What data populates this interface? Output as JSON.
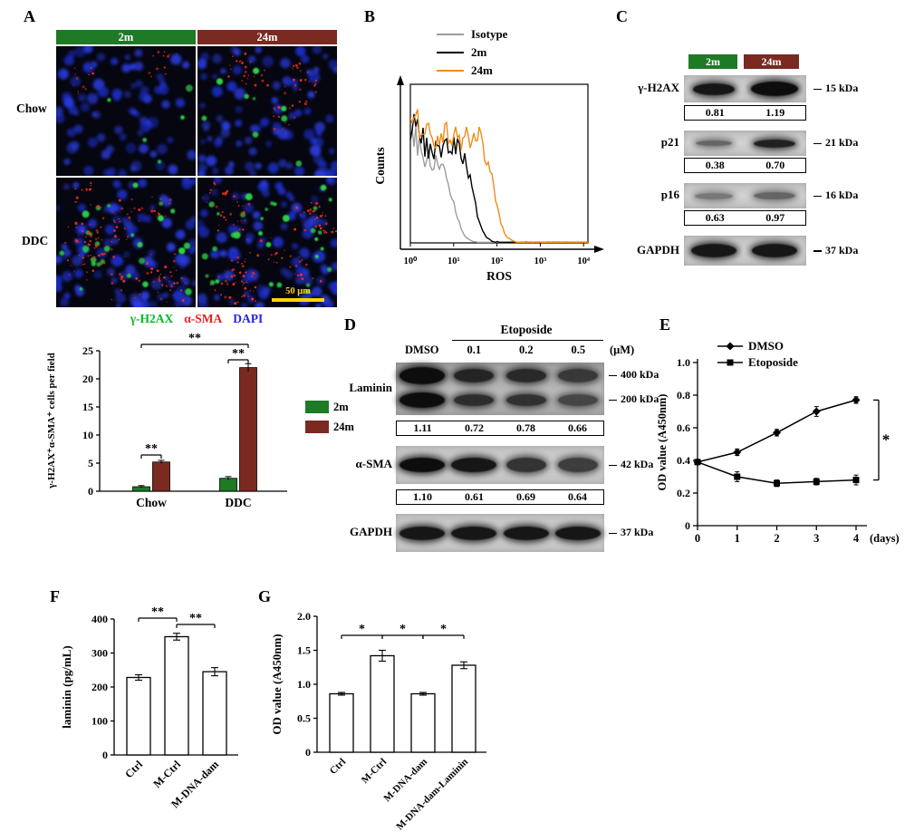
{
  "panels": {
    "A": {
      "label": "A",
      "columns": [
        {
          "label": "2m",
          "color": "#1e7a25"
        },
        {
          "label": "24m",
          "color": "#7a2a21"
        }
      ],
      "rows": [
        "Chow",
        "DDC"
      ],
      "scale_bar_label": "50 μm",
      "fluor_legend": [
        {
          "label": "γ-H2AX",
          "color": "#00bb22"
        },
        {
          "label": "α-SMA",
          "color": "#ee1c1c"
        },
        {
          "label": "DAPI",
          "color": "#2222ee"
        }
      ],
      "micrographs": [
        {
          "name": "Chow-2m",
          "blue": 85,
          "green": 5,
          "red": 24,
          "seed": 101
        },
        {
          "name": "Chow-24m",
          "blue": 90,
          "green": 9,
          "red": 60,
          "seed": 202
        },
        {
          "name": "DDC-2m",
          "blue": 100,
          "green": 26,
          "red": 150,
          "seed": 303
        },
        {
          "name": "DDC-24m",
          "blue": 95,
          "green": 32,
          "red": 140,
          "seed": 404
        }
      ]
    },
    "B": {
      "label": "B"
    },
    "C": {
      "label": "C",
      "lanes": [
        {
          "label": "2m",
          "color": "#1e7a25"
        },
        {
          "label": "24m",
          "color": "#7a2a21"
        }
      ],
      "blots": [
        {
          "protein": "γ-H2AX",
          "kda": "15 kDa",
          "values": [
            "0.81",
            "1.19"
          ],
          "ops": [
            0.95,
            1
          ],
          "hs": [
            13,
            16
          ],
          "ws": [
            46,
            52
          ]
        },
        {
          "protein": "p21",
          "kda": "21 kDa",
          "values": [
            "0.38",
            "0.70"
          ],
          "ops": [
            0.55,
            0.9
          ],
          "hs": [
            6,
            9
          ],
          "ws": [
            40,
            46
          ]
        },
        {
          "protein": "p16",
          "kda": "16 kDa",
          "values": [
            "0.63",
            "0.97"
          ],
          "ops": [
            0.45,
            0.55
          ],
          "hs": [
            7,
            8
          ],
          "ws": [
            42,
            46
          ]
        },
        {
          "protein": "GAPDH",
          "kda": "37 kDa",
          "values": null,
          "ops": [
            0.95,
            0.95
          ],
          "hs": [
            15,
            15
          ],
          "ws": [
            50,
            50
          ]
        }
      ]
    },
    "D": {
      "label": "D",
      "treatment": "Etoposide",
      "lane_labels": [
        "DMSO",
        "0.1",
        "0.2",
        "0.5"
      ],
      "unit_label": "(μM)",
      "blots": [
        {
          "protein": "Laminin",
          "kda": [
            "400 kDa",
            "200 kDa"
          ],
          "values": [
            "1.11",
            "0.72",
            "0.78",
            "0.66"
          ],
          "rows_ops": [
            [
              1,
              0.85,
              0.82,
              0.72
            ],
            [
              1,
              0.8,
              0.78,
              0.65
            ]
          ]
        },
        {
          "protein": "α-SMA",
          "kda": [
            "42 kDa"
          ],
          "values": [
            "1.10",
            "0.61",
            "0.69",
            "0.64"
          ],
          "rows_ops": [
            [
              1,
              0.95,
              0.8,
              0.75
            ]
          ]
        },
        {
          "protein": "GAPDH",
          "kda": [
            "37 kDa"
          ],
          "values": null,
          "rows_ops": [
            [
              0.95,
              0.95,
              0.95,
              0.95
            ]
          ]
        }
      ]
    },
    "E": {
      "label": "E"
    },
    "F": {
      "label": "F"
    },
    "G": {
      "label": "G"
    }
  },
  "chart_data": [
    {
      "id": "A_bar",
      "type": "bar",
      "ylabel": "γ-H2AX⁺α-SMA⁺ cells per field",
      "categories": [
        "Chow",
        "DDC"
      ],
      "series": [
        {
          "name": "2m",
          "color": "#1e7a25",
          "values": [
            0.8,
            2.3
          ],
          "errors": [
            0.2,
            0.3
          ]
        },
        {
          "name": "24m",
          "color": "#7a2a21",
          "values": [
            5.2,
            22
          ],
          "errors": [
            0.3,
            0.7
          ]
        }
      ],
      "ylim": [
        0,
        25
      ],
      "yticks": [
        0,
        5,
        10,
        15,
        20,
        25
      ],
      "legend_position": "right",
      "significance": [
        {
          "type": "pair",
          "cat": 0,
          "label": "**"
        },
        {
          "type": "pair",
          "cat": 1,
          "label": "**"
        },
        {
          "type": "span",
          "label": "**"
        }
      ]
    },
    {
      "id": "B_flow",
      "type": "line",
      "xlabel": "ROS",
      "ylabel": "Counts",
      "xscale": "log",
      "xtick_labels": [
        "10⁰",
        "10¹",
        "10²",
        "10³",
        "10⁴"
      ],
      "legend_position": "top",
      "series": [
        {
          "name": "Isotype",
          "color": "#9c9c9c",
          "plateau": 0.52,
          "fall_log": 1.0
        },
        {
          "name": "2m",
          "color": "#000000",
          "plateau": 0.6,
          "fall_log": 1.45
        },
        {
          "name": "24m",
          "color": "#ee8c1a",
          "plateau": 0.68,
          "fall_log": 1.92
        }
      ]
    },
    {
      "id": "E_line",
      "type": "line",
      "ylabel": "OD value (A450nm)",
      "xlabel": "(days)",
      "x": [
        0,
        1,
        2,
        3,
        4
      ],
      "ylim": [
        0,
        1
      ],
      "yticks": [
        "0",
        "0.2",
        "0.4",
        "0.6",
        "0.8",
        "1.0"
      ],
      "series": [
        {
          "name": "DMSO",
          "marker": "diamond",
          "values": [
            0.39,
            0.45,
            0.57,
            0.7,
            0.77
          ],
          "errors": [
            0.01,
            0.02,
            0.02,
            0.03,
            0.02
          ]
        },
        {
          "name": "Etoposide",
          "marker": "square",
          "values": [
            0.39,
            0.3,
            0.26,
            0.27,
            0.28
          ],
          "errors": [
            0.01,
            0.03,
            0.02,
            0.02,
            0.03
          ]
        }
      ],
      "significance_label": "*"
    },
    {
      "id": "F_bar",
      "type": "bar",
      "ylabel": "laminin (pg/mL)",
      "categories": [
        "Ctrl",
        "M-Ctrl",
        "M-DNA-dam"
      ],
      "values": [
        228,
        348,
        245
      ],
      "errors": [
        8,
        10,
        12
      ],
      "ylim": [
        0,
        400
      ],
      "yticks": [
        0,
        100,
        200,
        300,
        400
      ],
      "significance": [
        {
          "from": 0,
          "to": 1,
          "label": "**"
        },
        {
          "from": 1,
          "to": 2,
          "label": "**"
        }
      ]
    },
    {
      "id": "G_bar",
      "type": "bar",
      "ylabel": "OD value (A450nm)",
      "categories": [
        "Ctrl",
        "M-Ctrl",
        "M-DNA-dam",
        "M-DNA-dam-Laminin"
      ],
      "values": [
        0.86,
        1.42,
        0.86,
        1.28
      ],
      "errors": [
        0.02,
        0.08,
        0.02,
        0.05
      ],
      "ylim": [
        0,
        2
      ],
      "yticks": [
        "0",
        "0.5",
        "1.0",
        "1.5",
        "2.0"
      ],
      "significance": [
        {
          "from": 0,
          "to": 1,
          "label": "*"
        },
        {
          "from": 1,
          "to": 2,
          "label": "*"
        },
        {
          "from": 2,
          "to": 3,
          "label": "*"
        }
      ]
    }
  ]
}
